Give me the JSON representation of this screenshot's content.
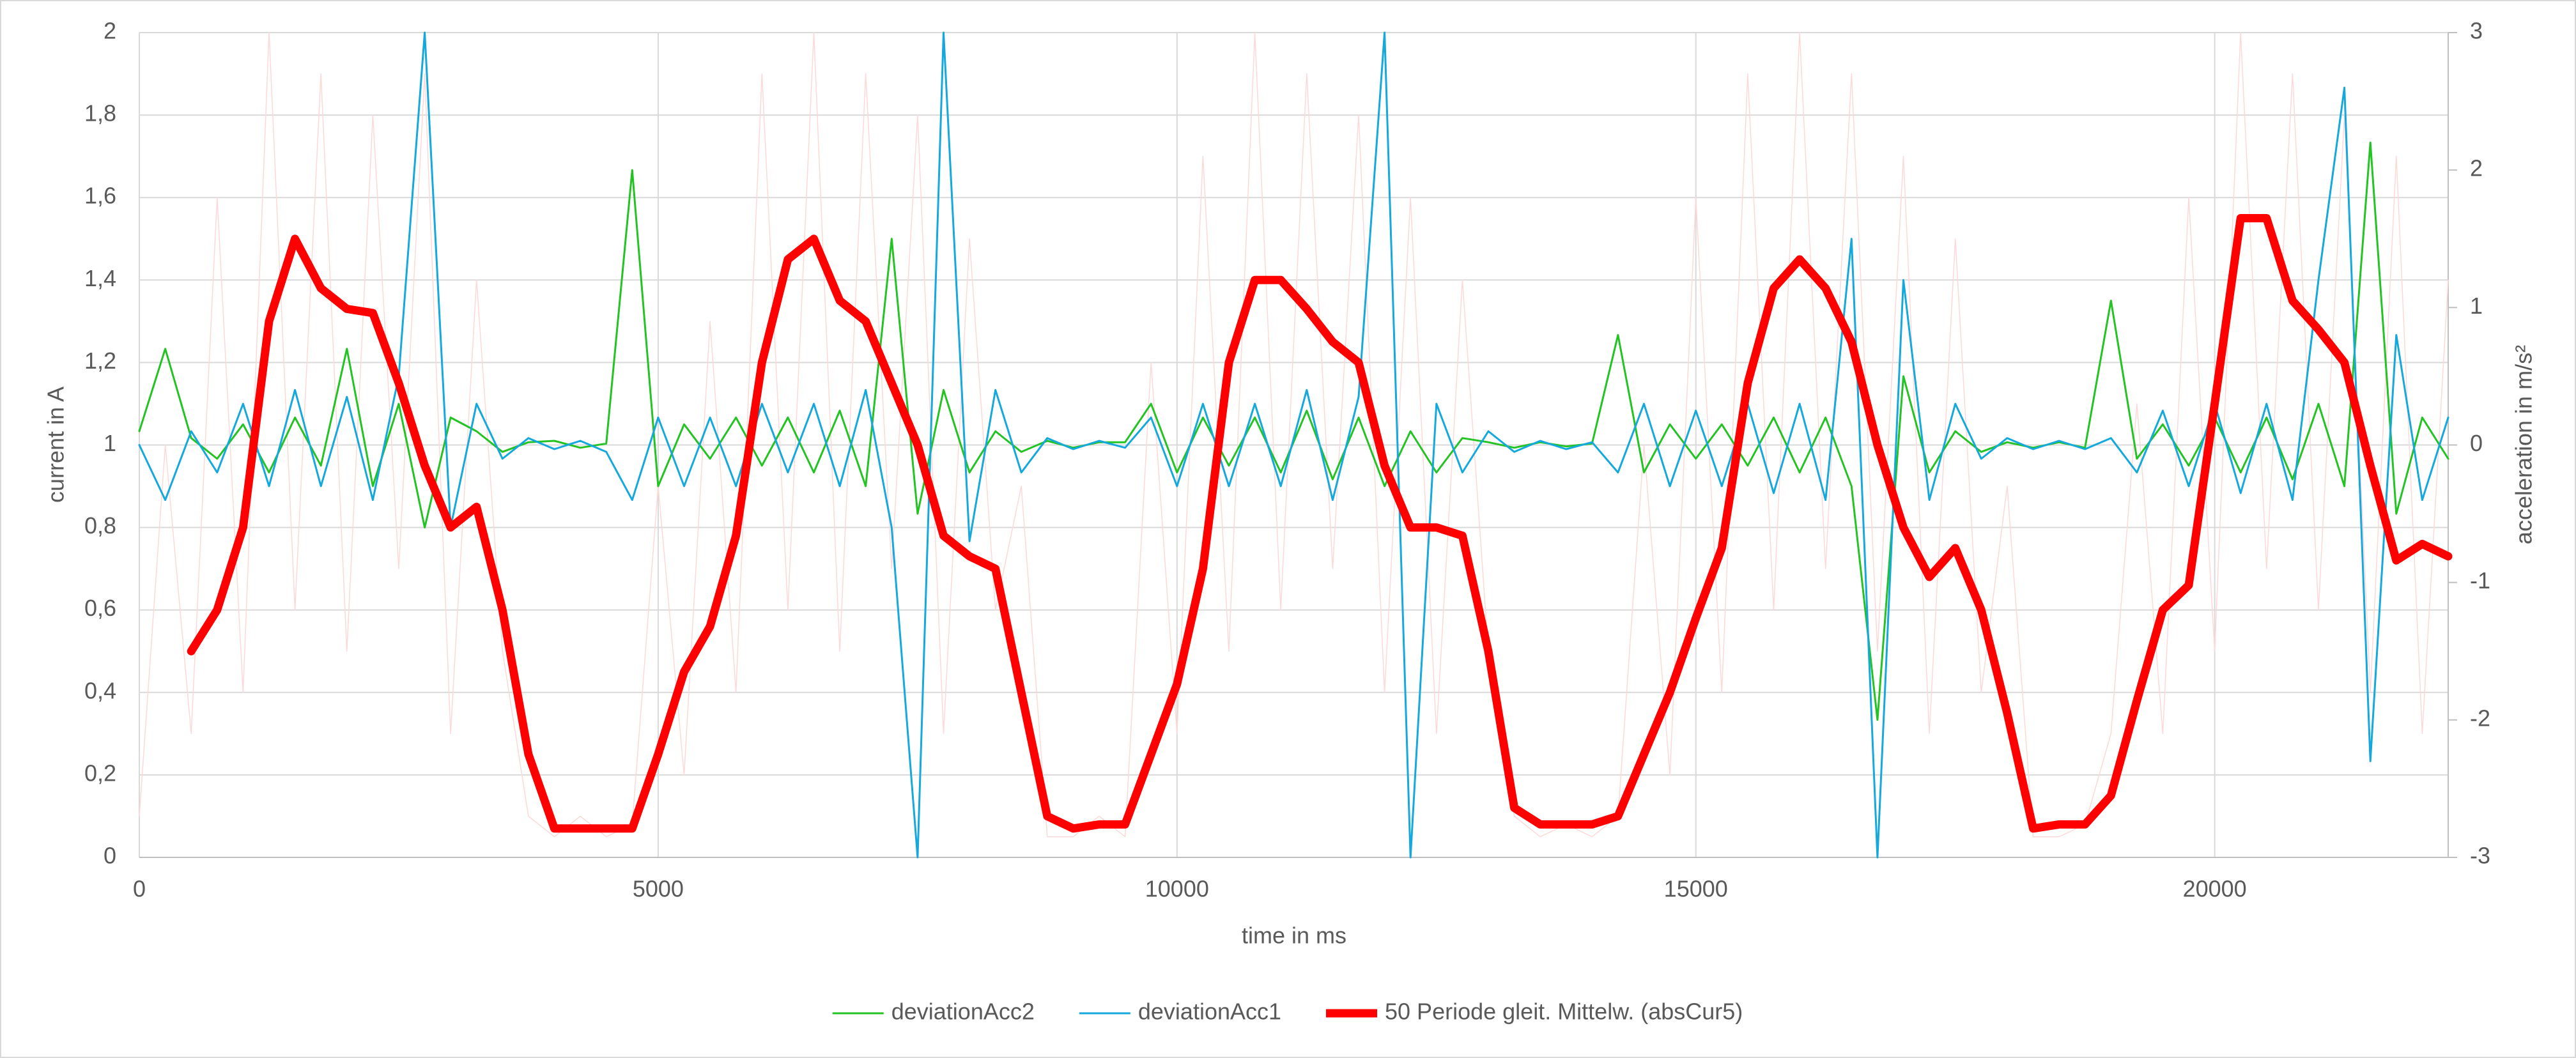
{
  "chart_data": {
    "type": "line",
    "xlabel": "time in ms",
    "ylabel": "current in A",
    "y2label": "acceleration in m/s²",
    "legend": "bottom",
    "grid": true,
    "xlim": [
      0,
      22250
    ],
    "xticks": [
      0,
      5000,
      10000,
      15000,
      20000
    ],
    "ylim": [
      0,
      2
    ],
    "yticks": [
      0,
      {
        "value": 0.2,
        "label": "0,2"
      },
      {
        "value": 0.4,
        "label": "0,4"
      },
      {
        "value": 0.6,
        "label": "0,6"
      },
      {
        "value": 0.8,
        "label": "0,8"
      },
      1,
      {
        "value": 1.2,
        "label": "1,2"
      },
      {
        "value": 1.4,
        "label": "1,4"
      },
      {
        "value": 1.6,
        "label": "1,6"
      },
      {
        "value": 1.8,
        "label": "1,8"
      },
      2
    ],
    "y2lim": [
      -3,
      3
    ],
    "y2ticks": [
      -3,
      -2,
      -1,
      0,
      1,
      2,
      3
    ],
    "x": [
      0,
      250,
      500,
      750,
      1000,
      1250,
      1500,
      1750,
      2000,
      2250,
      2500,
      2750,
      3000,
      3250,
      3500,
      3750,
      4000,
      4250,
      4500,
      4750,
      5000,
      5250,
      5500,
      5750,
      6000,
      6250,
      6500,
      6750,
      7000,
      7250,
      7500,
      7750,
      8000,
      8250,
      8500,
      8750,
      9000,
      9250,
      9500,
      9750,
      10000,
      10250,
      10500,
      10750,
      11000,
      11250,
      11500,
      11750,
      12000,
      12250,
      12500,
      12750,
      13000,
      13250,
      13500,
      13750,
      14000,
      14250,
      14500,
      14750,
      15000,
      15250,
      15500,
      15750,
      16000,
      16250,
      16500,
      16750,
      17000,
      17250,
      17500,
      17750,
      18000,
      18250,
      18500,
      18750,
      19000,
      19250,
      19500,
      19750,
      20000,
      20250,
      20500,
      20750,
      21000,
      21250,
      21500,
      21750,
      22000,
      22250
    ],
    "series": [
      {
        "color": "#fcd9d9",
        "width": 1.5,
        "values": [
          0.1,
          1.0,
          0.3,
          1.6,
          0.4,
          2,
          0.6,
          1.9,
          0.5,
          1.8,
          0.7,
          1.9,
          0.3,
          1.4,
          0.5,
          0.1,
          0.05,
          0.1,
          0.05,
          0.08,
          0.9,
          0.2,
          1.3,
          0.4,
          1.9,
          0.6,
          2,
          0.5,
          1.9,
          0.7,
          1.8,
          0.3,
          1.5,
          0.6,
          0.9,
          0.05,
          0.05,
          0.1,
          0.05,
          1.2,
          0.3,
          1.7,
          0.5,
          2,
          0.6,
          1.9,
          0.7,
          1.8,
          0.4,
          1.6,
          0.3,
          1.4,
          0.5,
          0.1,
          0.05,
          0.08,
          0.05,
          0.1,
          1.0,
          0.2,
          1.6,
          0.4,
          1.9,
          0.6,
          2,
          0.7,
          1.9,
          0.5,
          1.7,
          0.3,
          1.5,
          0.4,
          0.9,
          0.05,
          0.05,
          0.08,
          0.3,
          1.1,
          0.3,
          1.6,
          0.5,
          2,
          0.7,
          1.9,
          0.6,
          1.8,
          0.4,
          1.7,
          0.3,
          1.4
        ]
      },
      {
        "name": "deviationAcc2",
        "color": "#22c322",
        "axis": "y2",
        "width": 3,
        "values": [
          0.1,
          0.7,
          0.05,
          -0.1,
          0.15,
          -0.2,
          0.2,
          -0.15,
          0.7,
          -0.3,
          0.3,
          -0.6,
          0.2,
          0.1,
          -0.05,
          0.02,
          0.03,
          -0.02,
          0.01,
          2,
          -0.3,
          0.15,
          -0.1,
          0.2,
          -0.15,
          0.2,
          -0.2,
          0.25,
          -0.3,
          1.5,
          -0.5,
          0.4,
          -0.2,
          0.1,
          -0.05,
          0.03,
          -0.02,
          0.02,
          0.02,
          0.3,
          -0.2,
          0.2,
          -0.15,
          0.2,
          -0.2,
          0.25,
          -0.25,
          0.2,
          -0.3,
          0.1,
          -0.2,
          0.05,
          0.02,
          -0.02,
          0.02,
          -0.01,
          0.01,
          0.8,
          -0.2,
          0.15,
          -0.1,
          0.15,
          -0.15,
          0.2,
          -0.2,
          0.2,
          -0.3,
          -2,
          0.5,
          -0.2,
          0.1,
          -0.05,
          0.02,
          -0.02,
          0.02,
          -0.02,
          1.05,
          -0.1,
          0.15,
          -0.15,
          0.2,
          -0.2,
          0.2,
          -0.25,
          0.3,
          -0.3,
          2.2,
          -0.5,
          0.2,
          -0.1
        ]
      },
      {
        "name": "deviationAcc1",
        "color": "#14a8dc",
        "axis": "y2",
        "width": 3,
        "values": [
          0,
          -0.4,
          0.1,
          -0.2,
          0.3,
          -0.3,
          0.4,
          -0.3,
          0.35,
          -0.4,
          0.5,
          3,
          -0.6,
          0.3,
          -0.1,
          0.05,
          -0.03,
          0.03,
          -0.05,
          -0.4,
          0.2,
          -0.3,
          0.2,
          -0.3,
          0.3,
          -0.2,
          0.3,
          -0.3,
          0.4,
          -0.6,
          -3,
          3,
          -0.7,
          0.4,
          -0.2,
          0.05,
          -0.03,
          0.03,
          -0.02,
          0.2,
          -0.3,
          0.3,
          -0.3,
          0.3,
          -0.3,
          0.4,
          -0.4,
          0.35,
          3,
          -3,
          0.3,
          -0.2,
          0.1,
          -0.05,
          0.03,
          -0.03,
          0.02,
          -0.2,
          0.3,
          -0.3,
          0.25,
          -0.3,
          0.3,
          -0.35,
          0.3,
          -0.4,
          1.5,
          -3,
          1.2,
          -0.4,
          0.3,
          -0.1,
          0.05,
          -0.03,
          0.03,
          -0.03,
          0.05,
          -0.2,
          0.25,
          -0.3,
          0.3,
          -0.35,
          0.3,
          -0.4,
          1.2,
          2.6,
          -2.3,
          0.8,
          -0.4,
          0.2
        ]
      },
      {
        "name": "50 Periode gleit. Mittelw. (absCur5)",
        "color": "#ff0000",
        "width": 13,
        "values": [
          null,
          null,
          0.5,
          0.6,
          0.8,
          1.3,
          1.5,
          1.38,
          1.33,
          1.32,
          1.15,
          0.95,
          0.8,
          0.85,
          0.6,
          0.25,
          0.07,
          0.07,
          0.07,
          0.07,
          0.25,
          0.45,
          0.56,
          0.78,
          1.2,
          1.45,
          1.5,
          1.35,
          1.3,
          1.15,
          1.0,
          0.78,
          0.73,
          0.7,
          0.4,
          0.1,
          0.07,
          0.08,
          0.08,
          0.25,
          0.42,
          0.7,
          1.2,
          1.4,
          1.4,
          1.33,
          1.25,
          1.2,
          0.95,
          0.8,
          0.8,
          0.78,
          0.5,
          0.12,
          0.08,
          0.08,
          0.08,
          0.1,
          0.25,
          0.4,
          0.58,
          0.75,
          1.15,
          1.38,
          1.45,
          1.38,
          1.25,
          1.0,
          0.8,
          0.68,
          0.75,
          0.6,
          0.35,
          0.07,
          0.08,
          0.08,
          0.15,
          0.38,
          0.6,
          0.66,
          1.1,
          1.55,
          1.55,
          1.35,
          1.28,
          1.2,
          0.95,
          0.72,
          0.76,
          0.73
        ]
      }
    ]
  }
}
